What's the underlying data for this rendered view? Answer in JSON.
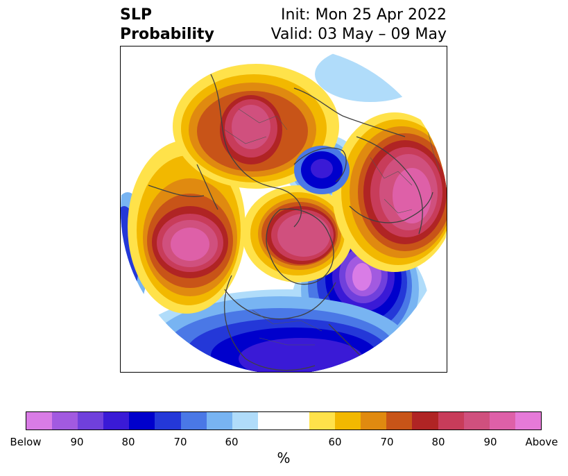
{
  "title": {
    "left_line1": "SLP",
    "left_line2": "Probability",
    "right_line1": "Init: Mon 25 Apr 2022",
    "right_line2": "Valid: 03 May – 09 May"
  },
  "colorbar": {
    "colors": [
      "#d97ce6",
      "#a25ae0",
      "#7040dc",
      "#3a1ad6",
      "#0000cc",
      "#2438d8",
      "#4a78e6",
      "#78b4f2",
      "#b0dcfa",
      "#ffffff",
      "#ffe24a",
      "#f2b800",
      "#e08a10",
      "#c85418",
      "#b02424",
      "#c83c5a",
      "#d0507e",
      "#de60a8",
      "#e67ad8"
    ],
    "tick_labels": [
      "Below",
      "90",
      "80",
      "70",
      "60",
      "60",
      "70",
      "80",
      "90",
      "Above"
    ],
    "unit": "%"
  }
}
